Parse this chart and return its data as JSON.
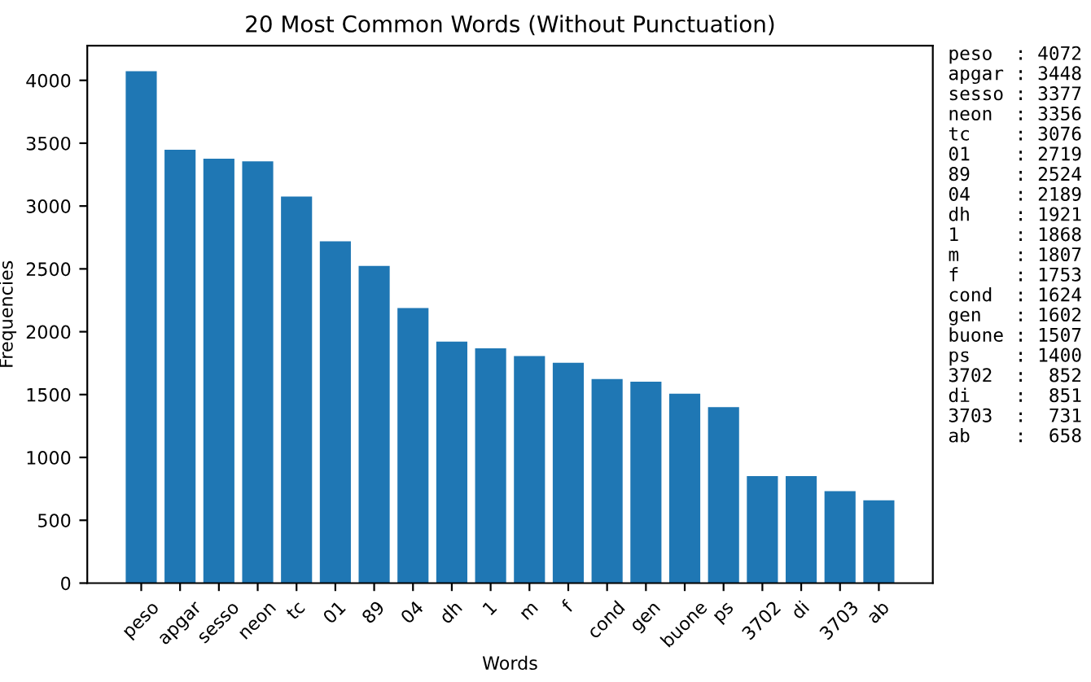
{
  "chart_data": {
    "type": "bar",
    "title": "20 Most Common Words (Without Punctuation)",
    "xlabel": "Words",
    "ylabel": "Frequencies",
    "categories": [
      "peso",
      "apgar",
      "sesso",
      "neon",
      "tc",
      "01",
      "89",
      "04",
      "dh",
      "1",
      "m",
      "f",
      "cond",
      "gen",
      "buone",
      "ps",
      "3702",
      "di",
      "3703",
      "ab"
    ],
    "values": [
      4072,
      3448,
      3377,
      3356,
      3076,
      2719,
      2524,
      2189,
      1921,
      1868,
      1807,
      1753,
      1624,
      1602,
      1507,
      1400,
      852,
      851,
      731,
      658
    ],
    "color": "#1f77b4",
    "ylim": [
      0,
      4275.6
    ],
    "yticks": [
      0,
      500,
      1000,
      1500,
      2000,
      2500,
      3000,
      3500,
      4000
    ],
    "grid": false,
    "annotations": [
      "peso  : 4072",
      "apgar : 3448",
      "sesso : 3377",
      "neon  : 3356",
      "tc    : 3076",
      "01    : 2719",
      "89    : 2524",
      "04    : 2189",
      "dh    : 1921",
      "1     : 1868",
      "m     : 1807",
      "f     : 1753",
      "cond  : 1624",
      "gen   : 1602",
      "buone : 1507",
      "ps    : 1400",
      "3702  :  852",
      "di    :  851",
      "3703  :  731",
      "ab    :  658"
    ]
  }
}
